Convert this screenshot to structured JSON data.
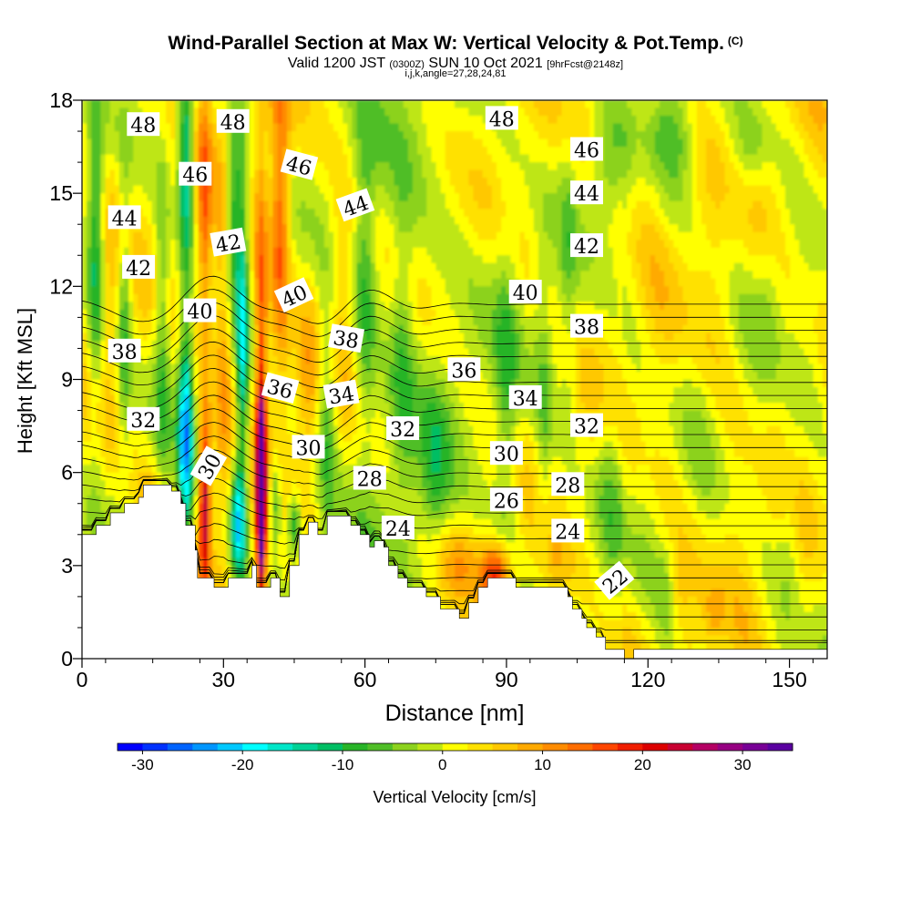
{
  "title": {
    "main": "Wind-Parallel Section at Max W: Vertical Velocity & Pot.Temp.",
    "copyright": "(C)",
    "valid_prefix": "Valid 1200 JST",
    "utc": "(0300Z)",
    "date": "SUN 10 Oct 2021",
    "forecast": "[9hrFcst@2148z]",
    "indices": "i,j,k,angle=27,28,24,81"
  },
  "chart_data": {
    "type": "heatmap",
    "description_fields": "Vertical velocity (cm/s) shaded; potential temperature contours labelled",
    "xlabel": "Distance [nm]",
    "ylabel": "Height [Kft MSL]",
    "xlim": [
      0,
      158
    ],
    "ylim": [
      0,
      18
    ],
    "x_ticks": [
      0,
      30,
      60,
      90,
      120,
      150
    ],
    "y_ticks": [
      0,
      3,
      6,
      9,
      12,
      15,
      18
    ],
    "colorbar": {
      "label": "Vertical Velocity [cm/s]",
      "ticks": [
        -30,
        -20,
        -10,
        0,
        10,
        20,
        30
      ],
      "range": [
        -32.5,
        35
      ],
      "colors": [
        "#0000ff",
        "#0032ff",
        "#0064ff",
        "#0096ff",
        "#00c8ff",
        "#00ffff",
        "#00e6c8",
        "#00d296",
        "#00be64",
        "#28b428",
        "#50be28",
        "#8cd21e",
        "#bee614",
        "#ffff00",
        "#ffe100",
        "#ffc800",
        "#ffaa00",
        "#ff8c00",
        "#ff6e00",
        "#ff4600",
        "#f01e00",
        "#dc0000",
        "#c80032",
        "#b40064",
        "#960082",
        "#780096",
        "#5a00a0"
      ]
    },
    "terrain_kft": [
      [
        0,
        4.0
      ],
      [
        3,
        4.0
      ],
      [
        3,
        4.3
      ],
      [
        6,
        4.3
      ],
      [
        6,
        4.7
      ],
      [
        9,
        4.7
      ],
      [
        9,
        5.0
      ],
      [
        12,
        5.0
      ],
      [
        12,
        5.2
      ],
      [
        13,
        5.2
      ],
      [
        13,
        5.6
      ],
      [
        19,
        5.6
      ],
      [
        19,
        5.4
      ],
      [
        21,
        5.4
      ],
      [
        21,
        5.0
      ],
      [
        22,
        5.0
      ],
      [
        22,
        4.3
      ],
      [
        24,
        4.3
      ],
      [
        24,
        3.5
      ],
      [
        24.5,
        3.5
      ],
      [
        24.5,
        2.6
      ],
      [
        27,
        2.6
      ],
      [
        27,
        2.6
      ],
      [
        28,
        2.6
      ],
      [
        28,
        2.3
      ],
      [
        30,
        2.3
      ],
      [
        30,
        2.3
      ],
      [
        31,
        2.3
      ],
      [
        31,
        2.6
      ],
      [
        35,
        2.6
      ],
      [
        35,
        2.6
      ],
      [
        36,
        2.6
      ],
      [
        36,
        3.0
      ],
      [
        37,
        3.0
      ],
      [
        37,
        2.3
      ],
      [
        40,
        2.3
      ],
      [
        40,
        2.6
      ],
      [
        42,
        2.6
      ],
      [
        42,
        2.0
      ],
      [
        44,
        2.0
      ],
      [
        44,
        3.0
      ],
      [
        46,
        3.0
      ],
      [
        46,
        4.0
      ],
      [
        48,
        4.0
      ],
      [
        48,
        4.4
      ],
      [
        50,
        4.4
      ],
      [
        50,
        4.0
      ],
      [
        52,
        4.0
      ],
      [
        52,
        4.6
      ],
      [
        57,
        4.6
      ],
      [
        57,
        4.3
      ],
      [
        59,
        4.3
      ],
      [
        59,
        4.0
      ],
      [
        61,
        4.0
      ],
      [
        61,
        3.6
      ],
      [
        62,
        3.6
      ],
      [
        62,
        3.8
      ],
      [
        64,
        3.8
      ],
      [
        64,
        3.6
      ],
      [
        65,
        3.6
      ],
      [
        65,
        3.0
      ],
      [
        67,
        3.0
      ],
      [
        67,
        2.6
      ],
      [
        69,
        2.6
      ],
      [
        69,
        2.3
      ],
      [
        73,
        2.3
      ],
      [
        73,
        2.0
      ],
      [
        76,
        2.0
      ],
      [
        76,
        1.6
      ],
      [
        80,
        1.6
      ],
      [
        80,
        1.3
      ],
      [
        82,
        1.3
      ],
      [
        82,
        1.8
      ],
      [
        84,
        1.8
      ],
      [
        84,
        2.3
      ],
      [
        86,
        2.3
      ],
      [
        86,
        2.6
      ],
      [
        92,
        2.6
      ],
      [
        92,
        2.3
      ],
      [
        99,
        2.3
      ],
      [
        99,
        2.3
      ],
      [
        103,
        2.3
      ],
      [
        103,
        2.0
      ],
      [
        104,
        2.0
      ],
      [
        104,
        1.6
      ],
      [
        106,
        1.6
      ],
      [
        106,
        1.3
      ],
      [
        107,
        1.3
      ],
      [
        107,
        1.0
      ],
      [
        109,
        1.0
      ],
      [
        109,
        0.7
      ],
      [
        111,
        0.7
      ],
      [
        111,
        0.3
      ],
      [
        115,
        0.3
      ],
      [
        115,
        0.0
      ],
      [
        117,
        0.0
      ],
      [
        117,
        0.3
      ],
      [
        158,
        0.3
      ]
    ],
    "updrafts": [
      [
        26,
        5.0,
        1.2,
        2.6,
        24
      ],
      [
        38,
        5.0,
        1.0,
        3.4,
        34
      ],
      [
        38,
        10.0,
        1.4,
        6.5,
        14
      ],
      [
        42,
        14.0,
        2.0,
        5.0,
        14
      ],
      [
        26,
        14.0,
        1.5,
        5.0,
        11
      ],
      [
        30,
        10.0,
        2.0,
        5.0,
        9
      ],
      [
        48,
        9.0,
        2.5,
        3.5,
        6
      ],
      [
        55,
        12.0,
        3.0,
        4.0,
        6
      ],
      [
        88,
        2.7,
        3.2,
        1.0,
        18
      ],
      [
        80,
        3.2,
        5.0,
        1.3,
        7
      ],
      [
        100,
        3.0,
        4.0,
        1.0,
        5
      ],
      [
        125,
        2.0,
        3.0,
        1.0,
        4
      ],
      [
        134,
        1.5,
        2.0,
        1.0,
        5
      ],
      [
        5,
        12.0,
        3.0,
        5.0,
        4
      ],
      [
        14,
        5.0,
        2.5,
        1.2,
        6
      ]
    ],
    "downdrafts": [
      [
        22,
        7.2,
        1.6,
        3.4,
        -24
      ],
      [
        33,
        4.3,
        1.7,
        2.0,
        -20
      ],
      [
        34,
        10.5,
        1.3,
        6.0,
        -16
      ],
      [
        22,
        16.0,
        1.6,
        3.5,
        -18
      ],
      [
        32,
        14.5,
        1.6,
        3.0,
        -14
      ],
      [
        41,
        5.0,
        1.4,
        1.5,
        -12
      ],
      [
        45,
        4.3,
        1.5,
        1.0,
        -14
      ],
      [
        3,
        13.0,
        1.8,
        5.0,
        -14
      ],
      [
        9,
        11.0,
        1.5,
        4.0,
        -10
      ],
      [
        17,
        11.0,
        1.7,
        5.0,
        -9
      ],
      [
        52,
        8.0,
        2.2,
        3.5,
        -10
      ],
      [
        60,
        12.0,
        2.3,
        5.0,
        -8
      ],
      [
        68,
        10.0,
        2.5,
        5.0,
        -6
      ],
      [
        75,
        6.0,
        3.0,
        3.0,
        -6
      ],
      [
        90,
        8.0,
        2.5,
        6.0,
        -7
      ],
      [
        98,
        8.0,
        2.0,
        5.0,
        -6
      ],
      [
        103,
        12.0,
        2.0,
        6.0,
        -5
      ],
      [
        112,
        5.5,
        3.0,
        3.0,
        -6
      ],
      [
        124,
        2.0,
        2.0,
        1.5,
        -6
      ],
      [
        112,
        16.0,
        4.0,
        2.0,
        -6
      ],
      [
        126,
        17.0,
        5.0,
        1.5,
        -6
      ],
      [
        142,
        16.5,
        4.0,
        1.5,
        -7
      ],
      [
        150,
        4.5,
        2.5,
        3.0,
        -5
      ],
      [
        146,
        12.0,
        3.0,
        2.5,
        -4
      ]
    ],
    "theta_levels": [
      22,
      23,
      24,
      25,
      26,
      27,
      28,
      29,
      30,
      31,
      32,
      33,
      34,
      35,
      36,
      37,
      38,
      39,
      40,
      41,
      42,
      43,
      44,
      45,
      46,
      47,
      48,
      49
    ],
    "theta_labels": [
      {
        "text": "48",
        "x": 13,
        "y": 17.2,
        "rot": 0
      },
      {
        "text": "48",
        "x": 32,
        "y": 17.3,
        "rot": 0
      },
      {
        "text": "48",
        "x": 89,
        "y": 17.4,
        "rot": 0
      },
      {
        "text": "46",
        "x": 24,
        "y": 15.6,
        "rot": 0
      },
      {
        "text": "46",
        "x": 46,
        "y": 15.9,
        "rot": 15
      },
      {
        "text": "46",
        "x": 107,
        "y": 16.4,
        "rot": 0
      },
      {
        "text": "44",
        "x": 9,
        "y": 14.2,
        "rot": 0
      },
      {
        "text": "44",
        "x": 58,
        "y": 14.6,
        "rot": -20
      },
      {
        "text": "44",
        "x": 107,
        "y": 15.0,
        "rot": 0
      },
      {
        "text": "42",
        "x": 12,
        "y": 12.6,
        "rot": 0
      },
      {
        "text": "42",
        "x": 31,
        "y": 13.4,
        "rot": -10
      },
      {
        "text": "42",
        "x": 107,
        "y": 13.3,
        "rot": 0
      },
      {
        "text": "40",
        "x": 25,
        "y": 11.2,
        "rot": 0
      },
      {
        "text": "40",
        "x": 45,
        "y": 11.7,
        "rot": -25
      },
      {
        "text": "40",
        "x": 94,
        "y": 11.8,
        "rot": 0
      },
      {
        "text": "38",
        "x": 9,
        "y": 9.9,
        "rot": 0
      },
      {
        "text": "38",
        "x": 56,
        "y": 10.3,
        "rot": 10
      },
      {
        "text": "38",
        "x": 107,
        "y": 10.7,
        "rot": 0
      },
      {
        "text": "36",
        "x": 42,
        "y": 8.7,
        "rot": 15
      },
      {
        "text": "36",
        "x": 81,
        "y": 9.3,
        "rot": 0
      },
      {
        "text": "34",
        "x": 55,
        "y": 8.5,
        "rot": -10
      },
      {
        "text": "34",
        "x": 94,
        "y": 8.4,
        "rot": 0
      },
      {
        "text": "32",
        "x": 13,
        "y": 7.7,
        "rot": 0
      },
      {
        "text": "32",
        "x": 68,
        "y": 7.4,
        "rot": 0
      },
      {
        "text": "32",
        "x": 107,
        "y": 7.5,
        "rot": 0
      },
      {
        "text": "30",
        "x": 27,
        "y": 6.2,
        "rot": -60
      },
      {
        "text": "30",
        "x": 48,
        "y": 6.8,
        "rot": 0
      },
      {
        "text": "30",
        "x": 90,
        "y": 6.6,
        "rot": 0
      },
      {
        "text": "28",
        "x": 61,
        "y": 5.8,
        "rot": 0
      },
      {
        "text": "28",
        "x": 103,
        "y": 5.6,
        "rot": 0
      },
      {
        "text": "26",
        "x": 90,
        "y": 5.1,
        "rot": 0
      },
      {
        "text": "24",
        "x": 67,
        "y": 4.2,
        "rot": 0
      },
      {
        "text": "24",
        "x": 103,
        "y": 4.1,
        "rot": 0
      },
      {
        "text": "22",
        "x": 113,
        "y": 2.5,
        "rot": -40
      }
    ]
  }
}
